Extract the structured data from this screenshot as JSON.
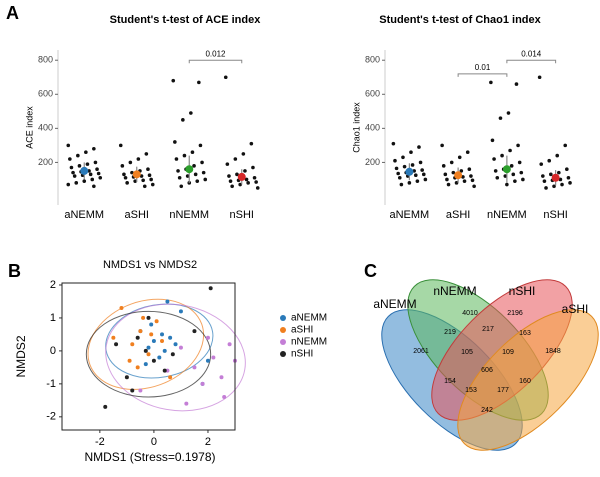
{
  "panel_labels": [
    "A",
    "B",
    "C"
  ],
  "chart_data": [
    {
      "type": "strip",
      "title": "Student's t-test of ACE index",
      "ylabel": "ACE index",
      "ylim": [
        -50,
        860
      ],
      "yticks": [
        200,
        400,
        600,
        800
      ],
      "categories": [
        "aNEMM",
        "aSHI",
        "nNEMM",
        "nSHI"
      ],
      "groups": [
        {
          "color": "#2a7ab9",
          "mean": 150,
          "sd": 50,
          "values": [
            300,
            280,
            260,
            240,
            220,
            200,
            190,
            180,
            170,
            160,
            150,
            145,
            140,
            135,
            130,
            125,
            120,
            110,
            100,
            90,
            80,
            70,
            60
          ]
        },
        {
          "color": "#f07f1f",
          "mean": 130,
          "sd": 45,
          "values": [
            300,
            250,
            220,
            200,
            180,
            160,
            150,
            140,
            130,
            125,
            120,
            115,
            110,
            100,
            95,
            90,
            80,
            70,
            60
          ]
        },
        {
          "color": "#2ca02c",
          "mean": 160,
          "sd": 80,
          "values": [
            680,
            670,
            490,
            450,
            320,
            300,
            260,
            240,
            220,
            200,
            180,
            160,
            150,
            140,
            130,
            120,
            110,
            100,
            90,
            80,
            60
          ]
        },
        {
          "color": "#d62728",
          "mean": 115,
          "sd": 45,
          "values": [
            700,
            310,
            250,
            220,
            190,
            170,
            150,
            130,
            120,
            110,
            100,
            95,
            90,
            85,
            80,
            70,
            60,
            50
          ]
        }
      ],
      "comparisons": [
        {
          "from": 2,
          "to": 3,
          "y": 800,
          "label": "0.012"
        }
      ]
    },
    {
      "type": "strip",
      "title": "Student's t-test of Chao1 index",
      "ylabel": "Chao1 index",
      "ylim": [
        -50,
        860
      ],
      "yticks": [
        200,
        400,
        600,
        800
      ],
      "categories": [
        "aNEMM",
        "aSHI",
        "nNEMM",
        "nSHI"
      ],
      "groups": [
        {
          "color": "#2a7ab9",
          "mean": 145,
          "sd": 50,
          "values": [
            310,
            290,
            260,
            230,
            210,
            200,
            185,
            175,
            165,
            155,
            150,
            140,
            135,
            130,
            125,
            120,
            110,
            100,
            90,
            80,
            70
          ]
        },
        {
          "color": "#f07f1f",
          "mean": 125,
          "sd": 45,
          "values": [
            300,
            260,
            230,
            200,
            180,
            160,
            150,
            140,
            130,
            120,
            115,
            110,
            100,
            95,
            90,
            80,
            70,
            60
          ]
        },
        {
          "color": "#2ca02c",
          "mean": 160,
          "sd": 80,
          "values": [
            670,
            660,
            490,
            460,
            330,
            300,
            270,
            240,
            220,
            200,
            180,
            160,
            150,
            140,
            130,
            120,
            110,
            100,
            90,
            70
          ]
        },
        {
          "color": "#d62728",
          "mean": 110,
          "sd": 45,
          "values": [
            700,
            300,
            240,
            210,
            190,
            160,
            140,
            130,
            120,
            110,
            100,
            95,
            90,
            80,
            70,
            60,
            50
          ]
        }
      ],
      "comparisons": [
        {
          "from": 1,
          "to": 2,
          "y": 720,
          "label": "0.01"
        },
        {
          "from": 2,
          "to": 3,
          "y": 800,
          "label": "0.014"
        }
      ]
    },
    {
      "type": "scatter",
      "title": "NMDS1 vs NMDS2",
      "xlabel": "NMDS1 (Stress=0.1978)",
      "ylabel": "NMDS2",
      "xlim": [
        -3.4,
        3.0
      ],
      "ylim": [
        -2.4,
        2.06
      ],
      "xticks": [
        -2,
        0,
        2
      ],
      "yticks": [
        -2,
        -1,
        0,
        1,
        2
      ],
      "legend": "right",
      "series": [
        {
          "name": "aNEMM",
          "color": "#2a7ab9",
          "x": [
            0,
            0.3,
            -0.2,
            0.5,
            -0.5,
            0.8,
            0.2,
            -0.1,
            1.0,
            0.4,
            -0.3,
            0.6,
            2.0,
            1.8
          ],
          "y": [
            0.3,
            0.5,
            0.1,
            1.5,
            0.6,
            0.2,
            -0.2,
            0.8,
            1.2,
            0.0,
            -0.4,
            0.4,
            -0.3,
            -1.0
          ],
          "ellipse": {
            "cx": 0.2,
            "cy": 0.3,
            "rx": 2.0,
            "ry": 1.1,
            "angle": 10
          }
        },
        {
          "name": "aSHI",
          "color": "#f07f1f",
          "x": [
            -0.8,
            -0.5,
            -0.2,
            0.1,
            -1.2,
            -0.6,
            0.3,
            -0.4,
            -1.5,
            0.6,
            -0.9,
            -0.1
          ],
          "y": [
            0.2,
            0.6,
            -0.1,
            0.9,
            1.3,
            -0.5,
            0.3,
            1.0,
            0.4,
            -0.8,
            -0.3,
            0.5
          ],
          "ellipse": {
            "cx": -0.3,
            "cy": 0.2,
            "rx": 2.2,
            "ry": 1.3,
            "angle": 20
          }
        },
        {
          "name": "nNEMM",
          "color": "#c47ed6",
          "x": [
            1.5,
            2.2,
            2.8,
            1.8,
            2.5,
            1.2,
            3.0,
            2.0,
            0.5,
            2.6,
            1.0,
            -0.5
          ],
          "y": [
            -0.5,
            -0.2,
            0.2,
            -1.0,
            -0.8,
            -1.6,
            -0.3,
            0.4,
            -0.6,
            -1.4,
            0.1,
            -1.2
          ],
          "ellipse": {
            "cx": 0.8,
            "cy": -0.2,
            "rx": 2.6,
            "ry": 1.6,
            "angle": -10
          }
        },
        {
          "name": "nSHI",
          "color": "#222222",
          "x": [
            -0.3,
            -0.6,
            0.0,
            -1.0,
            0.4,
            -1.4,
            -0.2,
            2.1,
            -1.8,
            0.7,
            -0.8,
            1.5
          ],
          "y": [
            0.0,
            0.4,
            -0.3,
            -0.8,
            -0.6,
            0.2,
            1.0,
            1.9,
            -1.7,
            -0.1,
            -1.2,
            0.6
          ],
          "ellipse": {
            "cx": -0.2,
            "cy": -0.1,
            "rx": 2.3,
            "ry": 1.3,
            "angle": 0
          }
        }
      ]
    }
  ],
  "venn": {
    "sets": [
      "aNEMM",
      "nNEMM",
      "nSHI",
      "aSHI"
    ],
    "regions": [
      "4010",
      "2196",
      "219",
      "217",
      "163",
      "2061",
      "105",
      "109",
      "1848",
      "606",
      "154",
      "153",
      "177",
      "160",
      "242"
    ]
  }
}
